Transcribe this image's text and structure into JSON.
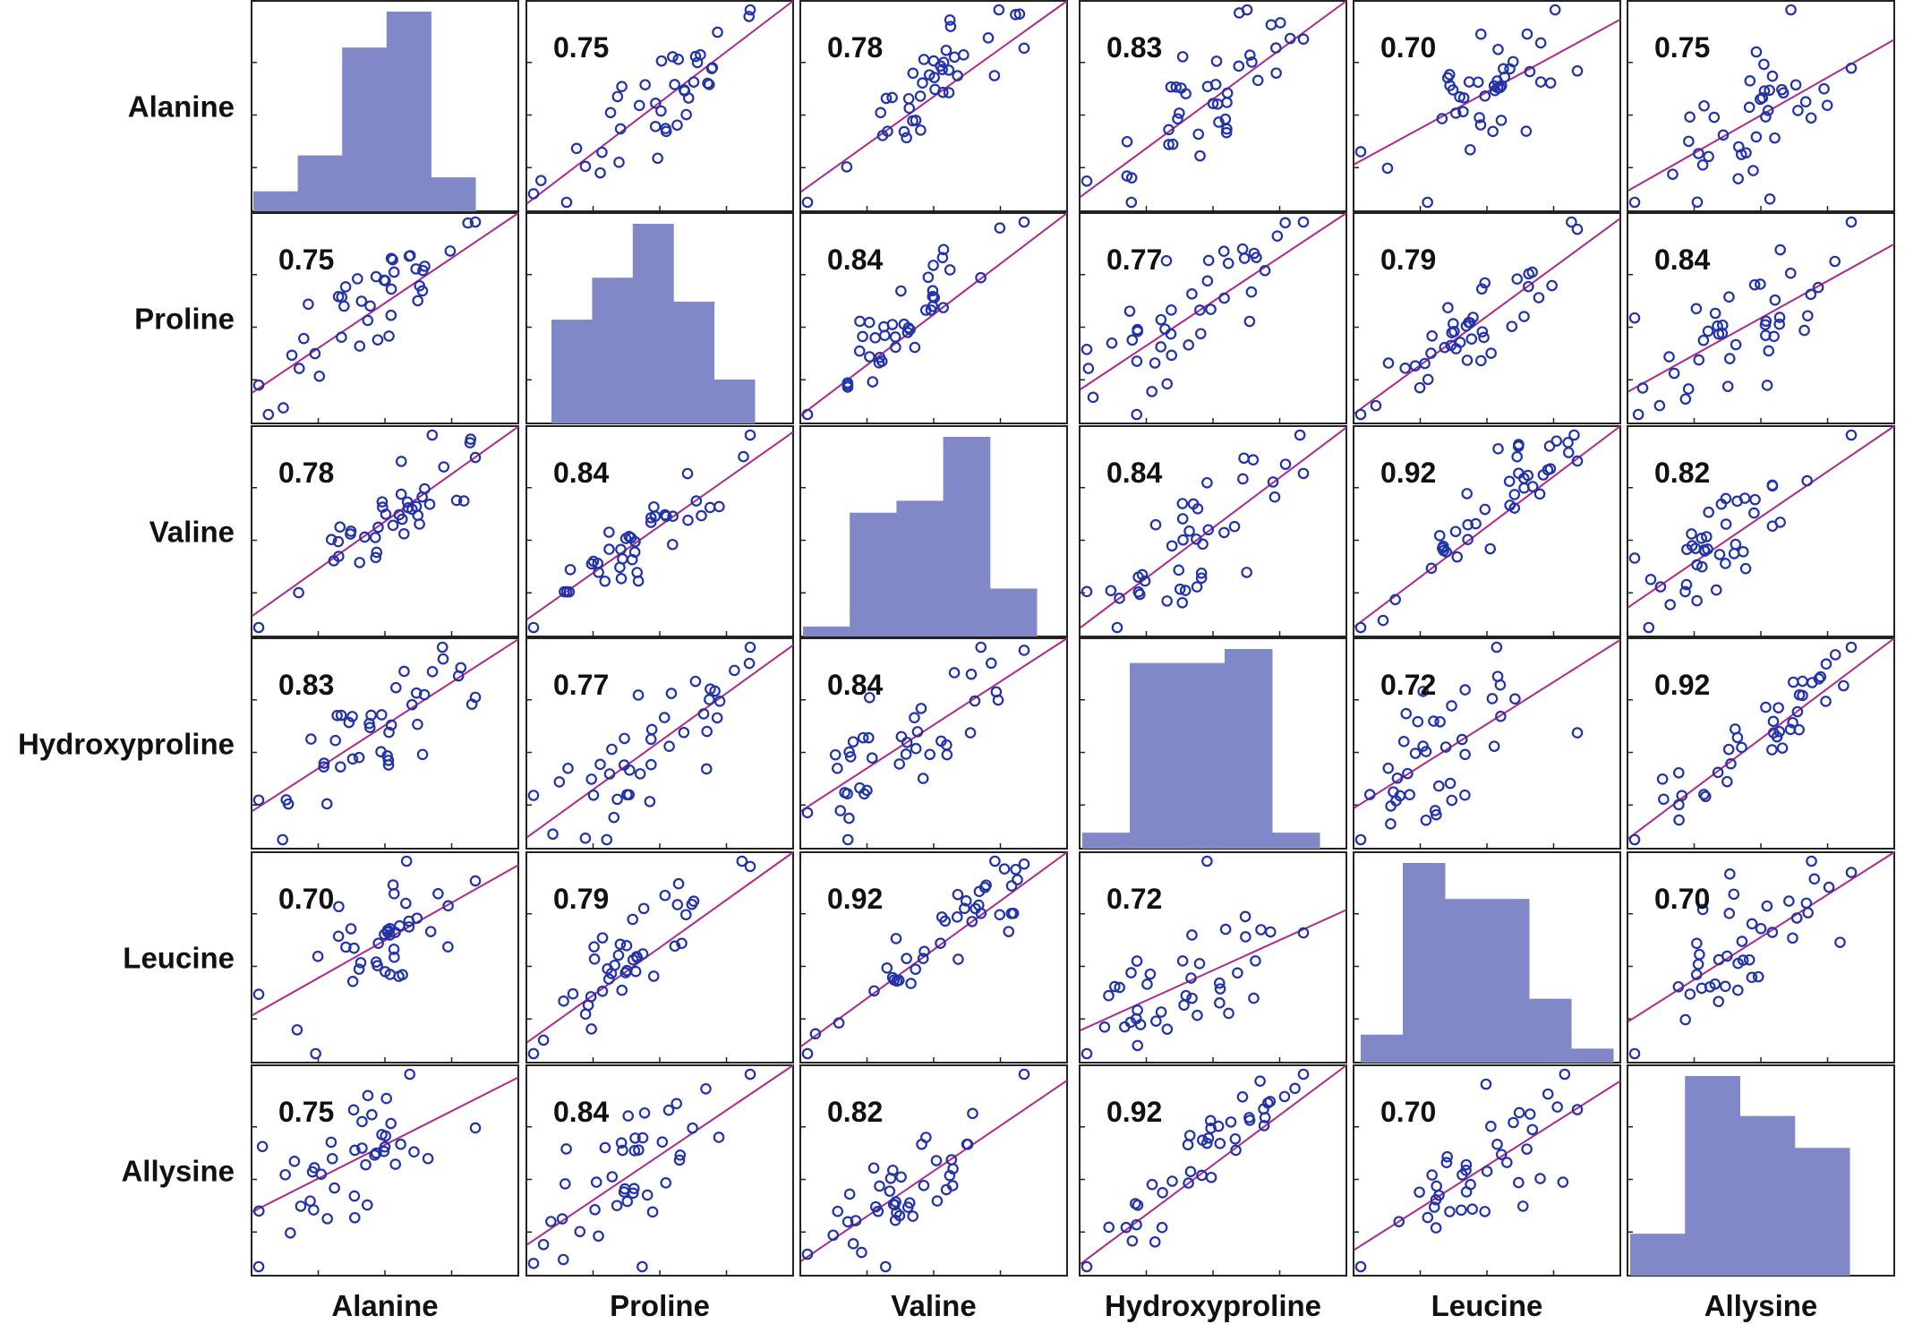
{
  "chart_data": {
    "type": "scatter",
    "variables": [
      "Alanine",
      "Proline",
      "Valine",
      "Hydroxyproline",
      "Leucine",
      "Allysine"
    ],
    "correlation_labels": [
      [
        null,
        "0.75",
        "0.78",
        "0.83",
        "0.70",
        "0.75"
      ],
      [
        "0.75",
        null,
        "0.84",
        "0.77",
        "0.79",
        "0.84"
      ],
      [
        "0.78",
        "0.84",
        null,
        "0.84",
        "0.92",
        "0.82"
      ],
      [
        "0.83",
        "0.77",
        "0.84",
        null,
        "0.72",
        "0.92"
      ],
      [
        "0.70",
        "0.79",
        "0.92",
        "0.72",
        null,
        "0.70"
      ],
      [
        "0.75",
        "0.84",
        "0.82",
        "0.92",
        "0.70",
        null
      ]
    ],
    "histograms": [
      [
        0.1,
        0.28,
        0.82,
        1.0,
        0.17
      ],
      [
        0.52,
        0.73,
        1.0,
        0.61,
        0.22
      ],
      [
        0.05,
        0.62,
        0.68,
        1.0,
        0.24
      ],
      [
        0.08,
        0.93,
        0.93,
        1.0,
        0.08
      ],
      [
        0.14,
        1.0,
        0.82,
        0.82,
        0.32,
        0.07
      ],
      [
        0.21,
        1.0,
        0.8,
        0.64
      ]
    ],
    "n_samples": 40,
    "marker": "open-circle",
    "fit_line": "least-squares",
    "colors": {
      "points": "#2233aa",
      "fit_line": "#b0288c",
      "histogram": "#8088c8",
      "frame": "#222222"
    }
  }
}
